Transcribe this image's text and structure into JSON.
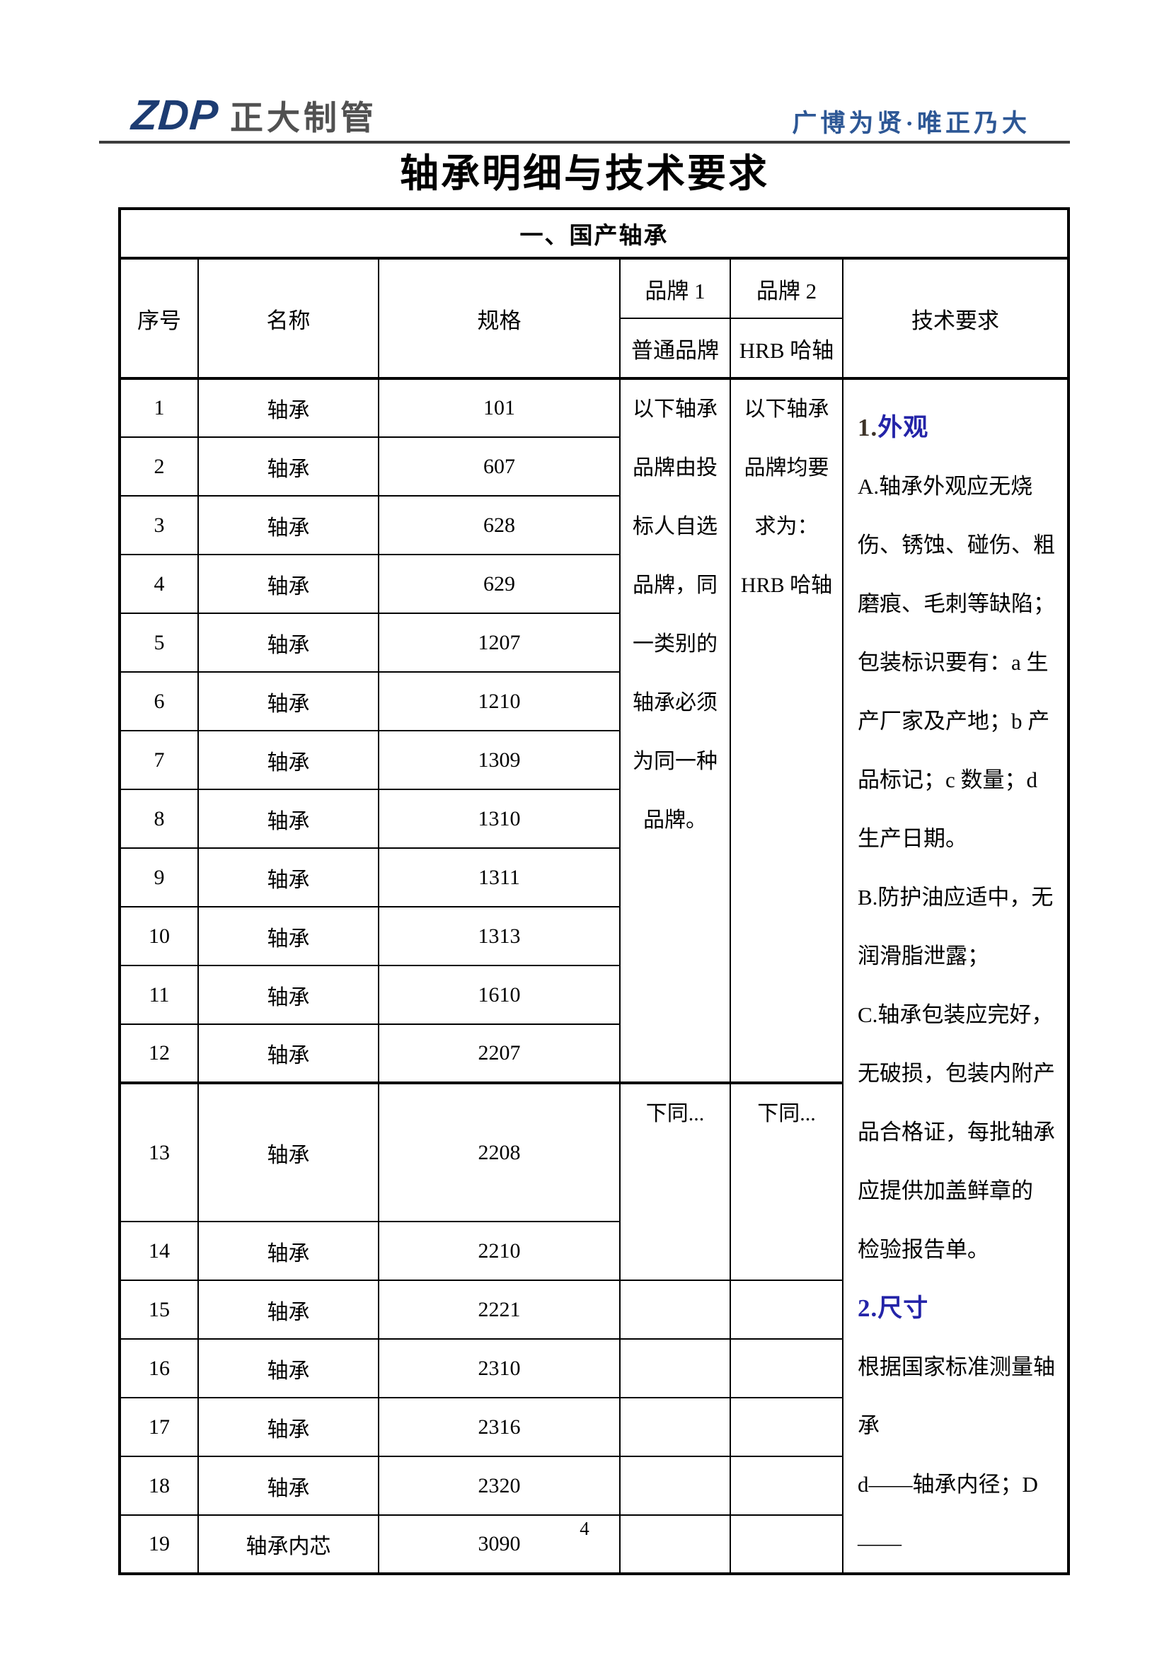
{
  "header": {
    "logo_zdp": "ZDP",
    "logo_company": "正大制管",
    "slogan": "广博为贤·唯正乃大"
  },
  "title": "轴承明细与技术要求",
  "page_number": "4",
  "colors": {
    "heading_blue": "#2424a8",
    "heading_num_dark": "#3d3328",
    "slogan_blue": "#2d5795",
    "logo_navy": "#1d3c72"
  },
  "table": {
    "caption": "一、国产轴承",
    "columns": {
      "seq": "序号",
      "name": "名称",
      "spec": "规格",
      "brand1": "品牌 1",
      "brand2": "品牌 2",
      "brand1_sub": "普通品牌",
      "brand2_sub": "HRB 哈轴",
      "tech": "技术要求"
    },
    "rows": [
      {
        "seq": "1",
        "name": "轴承",
        "spec": "101"
      },
      {
        "seq": "2",
        "name": "轴承",
        "spec": "607"
      },
      {
        "seq": "3",
        "name": "轴承",
        "spec": "628"
      },
      {
        "seq": "4",
        "name": "轴承",
        "spec": "629"
      },
      {
        "seq": "5",
        "name": "轴承",
        "spec": "1207"
      },
      {
        "seq": "6",
        "name": "轴承",
        "spec": "1210"
      },
      {
        "seq": "7",
        "name": "轴承",
        "spec": "1309"
      },
      {
        "seq": "8",
        "name": "轴承",
        "spec": "1310"
      },
      {
        "seq": "9",
        "name": "轴承",
        "spec": "1311"
      },
      {
        "seq": "10",
        "name": "轴承",
        "spec": "1313"
      },
      {
        "seq": "11",
        "name": "轴承",
        "spec": "1610"
      },
      {
        "seq": "12",
        "name": "轴承",
        "spec": "2207"
      },
      {
        "seq": "13",
        "name": "轴承",
        "spec": "2208"
      },
      {
        "seq": "14",
        "name": "轴承",
        "spec": "2210"
      },
      {
        "seq": "15",
        "name": "轴承",
        "spec": "2221"
      },
      {
        "seq": "16",
        "name": "轴承",
        "spec": "2310"
      },
      {
        "seq": "17",
        "name": "轴承",
        "spec": "2316"
      },
      {
        "seq": "18",
        "name": "轴承",
        "spec": "2320"
      },
      {
        "seq": "19",
        "name": "轴承内芯",
        "spec": "3090"
      }
    ],
    "brand1_note_lines": [
      "以下轴承",
      "品牌由投",
      "标人自选",
      "品牌，同",
      "一类别的",
      "轴承必须",
      "为同一种",
      "品牌。"
    ],
    "brand2_note_lines": [
      "以下轴承",
      "品牌均要",
      "求为：",
      "HRB 哈轴"
    ],
    "brand1_ditto": "下同...",
    "brand2_ditto": "下同...",
    "tech_lines": [
      {
        "type": "heading",
        "num": "1.",
        "text": "外观",
        "num_color": "#3d3328",
        "text_color": "#2424a8"
      },
      {
        "type": "line",
        "text": "A.轴承外观应无烧"
      },
      {
        "type": "line",
        "text": "伤、锈蚀、碰伤、粗"
      },
      {
        "type": "line",
        "text": "磨痕、毛刺等缺陷；"
      },
      {
        "type": "line",
        "text": "包装标识要有：a 生"
      },
      {
        "type": "line",
        "text": "产厂家及产地；b 产"
      },
      {
        "type": "line",
        "text": "品标记；c 数量；d"
      },
      {
        "type": "line",
        "text": "生产日期。"
      },
      {
        "type": "line",
        "text": "B.防护油应适中，无"
      },
      {
        "type": "line",
        "text": "润滑脂泄露；"
      },
      {
        "type": "line",
        "text": "C.轴承包装应完好，"
      },
      {
        "type": "line",
        "text": "无破损，包装内附产"
      },
      {
        "type": "line",
        "text": "品合格证，每批轴承"
      },
      {
        "type": "line",
        "text": "应提供加盖鲜章的"
      },
      {
        "type": "line",
        "text": "检验报告单。"
      },
      {
        "type": "heading",
        "num": "2.",
        "text": "尺寸",
        "num_color": "#2424a8",
        "text_color": "#2424a8"
      },
      {
        "type": "line",
        "text": "根据国家标准测量轴承"
      },
      {
        "type": "line",
        "text": "d——轴承内径；D——"
      }
    ]
  }
}
